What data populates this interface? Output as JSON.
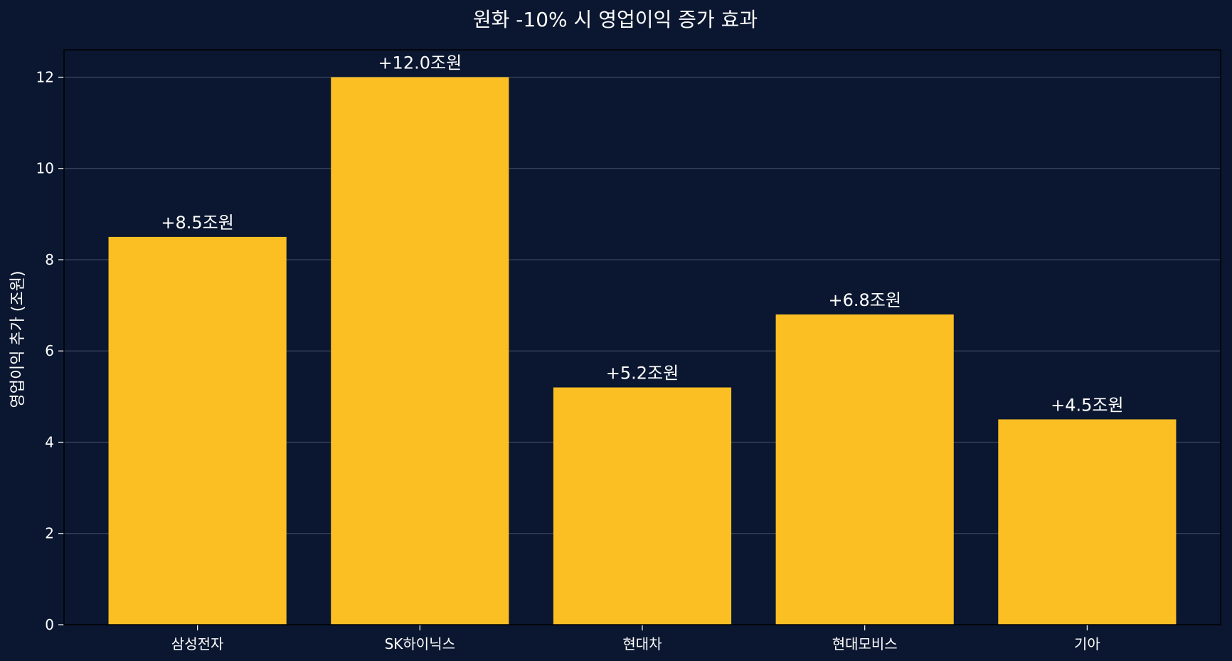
{
  "chart_data": {
    "type": "bar",
    "title": "원화 -10% 시 영업이익 증가 효과",
    "xlabel": "",
    "ylabel": "영업이익 추가 (조원)",
    "categories": [
      "삼성전자",
      "SK하이닉스",
      "현대차",
      "현대모비스",
      "기아"
    ],
    "values": [
      8.5,
      12.0,
      5.2,
      6.8,
      4.5
    ],
    "data_labels": [
      "+8.5조원",
      "+12.0조원",
      "+5.2조원",
      "+6.8조원",
      "+4.5조원"
    ],
    "ylim": [
      0,
      12.6
    ],
    "yticks": [
      0,
      2,
      4,
      6,
      8,
      10,
      12
    ],
    "grid": true,
    "legend": false,
    "colors": {
      "background": "#0b1730",
      "bar": "#fbbf24",
      "grid": "#3a4660",
      "text": "#ffffff",
      "axis": "#000000"
    }
  }
}
